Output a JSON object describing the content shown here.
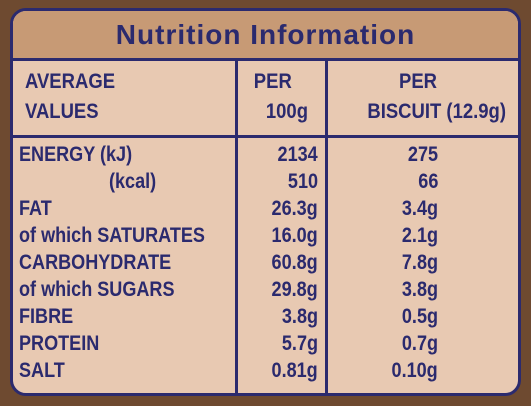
{
  "title": "Nutrition Information",
  "headers": {
    "values_line1": "AVERAGE",
    "values_line2": "VALUES",
    "per100_line1": "PER",
    "per100_line2": "100g",
    "perbiscuit_line1": "PER",
    "perbiscuit_line2": "BISCUIT (12.9g)"
  },
  "rows": [
    {
      "label": "ENERGY (kJ)",
      "per_100g": "2134",
      "per_biscuit": "275"
    },
    {
      "label": "(kcal)",
      "per_100g": "510",
      "per_biscuit": "66"
    },
    {
      "label": "FAT",
      "per_100g": "26.3g",
      "per_biscuit": "3.4g"
    },
    {
      "label": "of which SATURATES",
      "per_100g": "16.0g",
      "per_biscuit": "2.1g"
    },
    {
      "label": "CARBOHYDRATE",
      "per_100g": "60.8g",
      "per_biscuit": "7.8g"
    },
    {
      "label": "of which SUGARS",
      "per_100g": "29.8g",
      "per_biscuit": "3.8g"
    },
    {
      "label": "FIBRE",
      "per_100g": "3.8g",
      "per_biscuit": "0.5g"
    },
    {
      "label": "PROTEIN",
      "per_100g": "5.7g",
      "per_biscuit": "0.7g"
    },
    {
      "label": "SALT",
      "per_100g": "0.81g",
      "per_biscuit": "0.10g"
    }
  ],
  "colors": {
    "ink": "#2b2a6e",
    "panel": "#e8c9b2",
    "title_bar": "#c79a75",
    "background": "#6e4a30"
  }
}
